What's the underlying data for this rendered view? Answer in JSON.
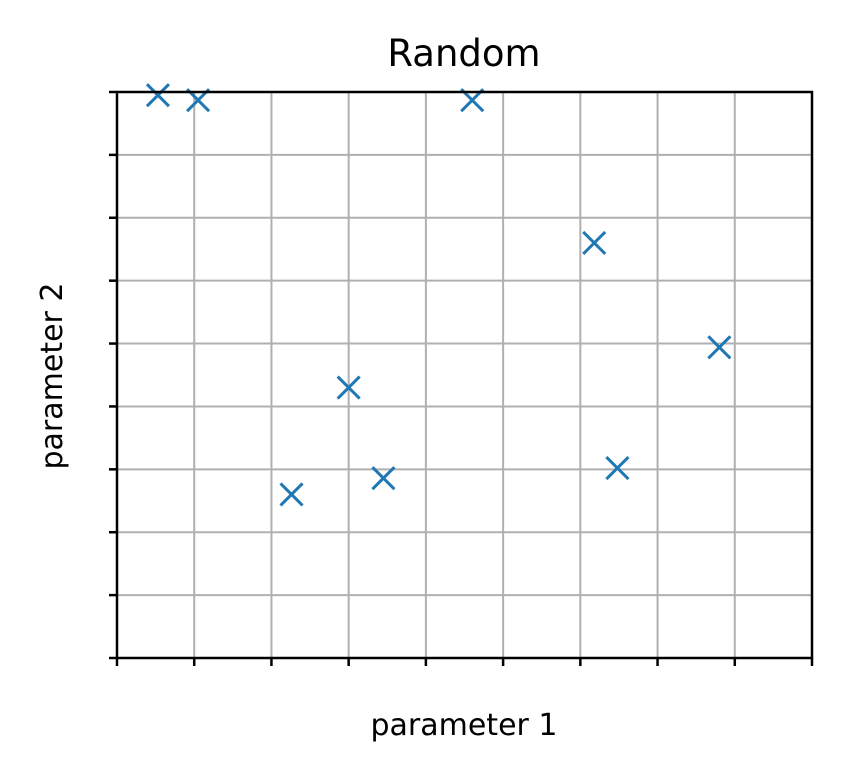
{
  "chart_data": {
    "type": "scatter",
    "title": "Random",
    "xlabel": "parameter 1",
    "ylabel": "parameter 2",
    "xlim": [
      0,
      9
    ],
    "ylim": [
      0,
      9
    ],
    "xticks": [
      0,
      1,
      2,
      3,
      4,
      5,
      6,
      7,
      8,
      9
    ],
    "yticks": [
      0,
      1,
      2,
      3,
      4,
      5,
      6,
      7,
      8,
      9
    ],
    "tick_labels_shown": false,
    "grid": true,
    "marker": "x",
    "color": "#1f77b4",
    "series": [
      {
        "points": [
          {
            "x": 0.53,
            "y": 8.95
          },
          {
            "x": 1.05,
            "y": 8.87
          },
          {
            "x": 2.26,
            "y": 2.6
          },
          {
            "x": 3.0,
            "y": 4.3
          },
          {
            "x": 3.45,
            "y": 2.86
          },
          {
            "x": 4.6,
            "y": 8.87
          },
          {
            "x": 6.18,
            "y": 6.6
          },
          {
            "x": 6.48,
            "y": 3.02
          },
          {
            "x": 7.8,
            "y": 4.94
          }
        ]
      }
    ]
  }
}
